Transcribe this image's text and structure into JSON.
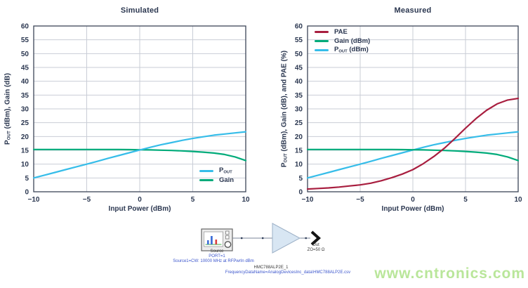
{
  "watermark": {
    "text": "www.cntronics.com",
    "color": "#b9e69a"
  },
  "chart_data": [
    {
      "type": "line",
      "title": "Simulated",
      "xlabel": "Input Power (dBm)",
      "ylabel_parts": {
        "pre": "P",
        "sub": "OUT",
        "post": " (dBm), Gain (dB)"
      },
      "xlim": [
        -10,
        10
      ],
      "ylim": [
        0,
        60
      ],
      "xticks": [
        -10,
        -5,
        0,
        5,
        10
      ],
      "yticks": [
        0,
        5,
        10,
        15,
        20,
        25,
        30,
        35,
        40,
        45,
        50,
        55,
        60
      ],
      "grid": true,
      "legend_position": "bottom-right",
      "series": [
        {
          "name": "POUT",
          "label_parts": {
            "pre": "P",
            "sub": "OUT",
            "post": ""
          },
          "color": "#36bde9",
          "x": [
            -10,
            -9,
            -8,
            -7,
            -6,
            -5,
            -4,
            -3,
            -2,
            -1,
            0,
            1,
            2,
            3,
            4,
            5,
            6,
            7,
            8,
            9,
            10
          ],
          "y": [
            5.0,
            6.0,
            7.0,
            8.0,
            9.0,
            10.0,
            11.0,
            12.1,
            13.1,
            14.1,
            15.1,
            16.1,
            17.0,
            17.8,
            18.6,
            19.3,
            19.9,
            20.5,
            20.9,
            21.3,
            21.7
          ]
        },
        {
          "name": "Gain",
          "label_parts": {
            "pre": "Gain",
            "sub": "",
            "post": ""
          },
          "color": "#00ab7a",
          "x": [
            -10,
            -9,
            -8,
            -7,
            -6,
            -5,
            -4,
            -3,
            -2,
            -1,
            0,
            1,
            2,
            3,
            4,
            5,
            6,
            7,
            8,
            9,
            10
          ],
          "y": [
            15.3,
            15.3,
            15.3,
            15.3,
            15.3,
            15.3,
            15.3,
            15.3,
            15.3,
            15.25,
            15.2,
            15.15,
            15.05,
            14.95,
            14.8,
            14.6,
            14.35,
            14.0,
            13.5,
            12.6,
            11.3
          ]
        }
      ]
    },
    {
      "type": "line",
      "title": "Measured",
      "xlabel": "Input Power (dBm)",
      "ylabel_parts": {
        "pre": "P",
        "sub": "OUT",
        "post": " (dBm), Gain (dB), and PAE (%)"
      },
      "xlim": [
        -10,
        10
      ],
      "ylim": [
        0,
        60
      ],
      "xticks": [
        -10,
        -5,
        0,
        5,
        10
      ],
      "yticks": [
        0,
        5,
        10,
        15,
        20,
        25,
        30,
        35,
        40,
        45,
        50,
        55,
        60
      ],
      "grid": true,
      "legend_position": "top-left",
      "series": [
        {
          "name": "PAE",
          "label_parts": {
            "pre": "PAE",
            "sub": "",
            "post": ""
          },
          "color": "#a81e3f",
          "x": [
            -10,
            -9,
            -8,
            -7,
            -6,
            -5,
            -4,
            -3,
            -2,
            -1,
            0,
            1,
            2,
            3,
            4,
            5,
            6,
            7,
            8,
            9,
            10
          ],
          "y": [
            1.0,
            1.2,
            1.4,
            1.7,
            2.1,
            2.5,
            3.1,
            4.0,
            5.1,
            6.4,
            8.0,
            10.2,
            12.8,
            15.8,
            19.3,
            23.0,
            26.5,
            29.5,
            31.8,
            33.2,
            33.8
          ]
        },
        {
          "name": "Gain (dBm)",
          "label_parts": {
            "pre": "Gain (dBm)",
            "sub": "",
            "post": ""
          },
          "color": "#00ab7a",
          "x": [
            -10,
            -9,
            -8,
            -7,
            -6,
            -5,
            -4,
            -3,
            -2,
            -1,
            0,
            1,
            2,
            3,
            4,
            5,
            6,
            7,
            8,
            9,
            10
          ],
          "y": [
            15.3,
            15.3,
            15.3,
            15.3,
            15.3,
            15.3,
            15.3,
            15.3,
            15.3,
            15.25,
            15.2,
            15.15,
            15.05,
            14.95,
            14.8,
            14.6,
            14.35,
            14.0,
            13.5,
            12.6,
            11.3
          ]
        },
        {
          "name": "POUT (dBm)",
          "label_parts": {
            "pre": "P",
            "sub": "OUT",
            "post": " (dBm)"
          },
          "color": "#36bde9",
          "x": [
            -10,
            -9,
            -8,
            -7,
            -6,
            -5,
            -4,
            -3,
            -2,
            -1,
            0,
            1,
            2,
            3,
            4,
            5,
            6,
            7,
            8,
            9,
            10
          ],
          "y": [
            5.0,
            6.0,
            7.0,
            8.0,
            9.0,
            10.0,
            11.0,
            12.1,
            13.1,
            14.1,
            15.1,
            16.1,
            17.0,
            17.8,
            18.6,
            19.3,
            19.9,
            20.5,
            20.9,
            21.3,
            21.7
          ]
        }
      ]
    }
  ],
  "schematic": {
    "source_label": "Source",
    "port_label": "PORT=1",
    "source_param": "Source1=CW: 10000 MHz at RFPwrIn dBm",
    "amp_name": "HMC788ALP2E_1",
    "amp_param": "FrequencyDataName=AnalogDevicesInc_data\\HMC788ALP2E.csv",
    "out_label": "Out",
    "out_impedance": "ZO=50 Ω"
  }
}
